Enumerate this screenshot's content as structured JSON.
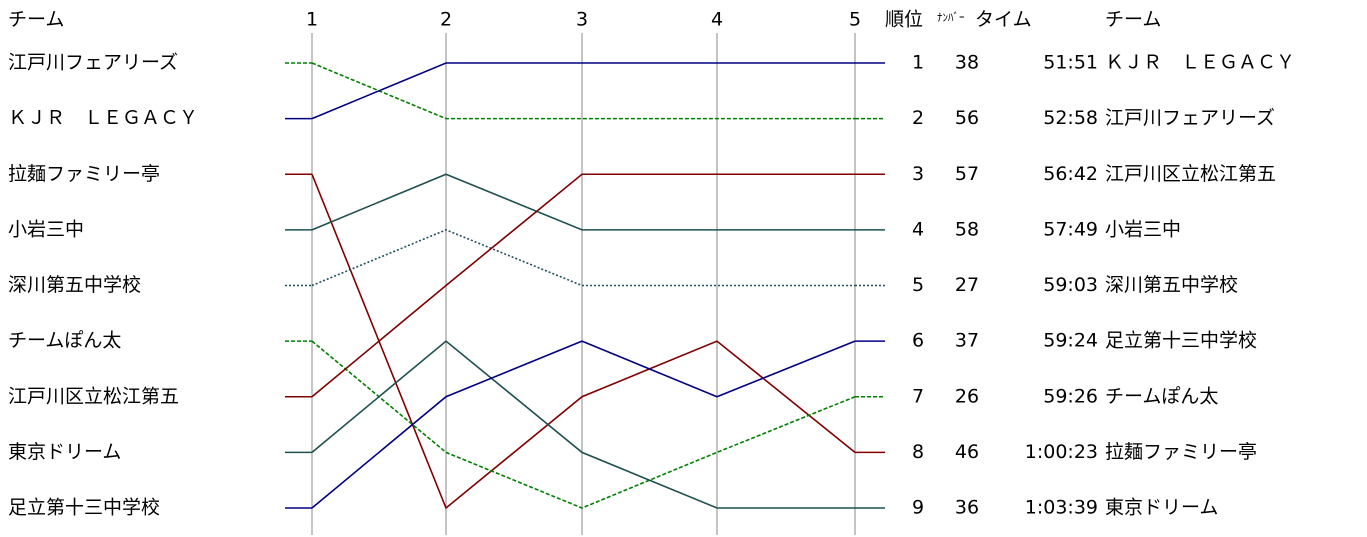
{
  "chart_data": {
    "type": "bump",
    "team_header": "チーム",
    "categories": [
      "1",
      "2",
      "3",
      "4",
      "5"
    ],
    "ylim": [
      9,
      1
    ],
    "series": [
      {
        "name": "江戸川フェアリーズ",
        "color": "#008000",
        "dash": "dashed",
        "values": [
          1,
          2,
          2,
          2,
          2
        ]
      },
      {
        "name": "ＫＪＲ　ＬＥＧＡＣＹ",
        "color": "#000080",
        "dash": "solid",
        "values": [
          2,
          1,
          1,
          1,
          1
        ]
      },
      {
        "name": "拉麺ファミリー亭",
        "color": "#800000",
        "dash": "solid",
        "values": [
          3,
          9,
          7,
          6,
          8
        ]
      },
      {
        "name": "小岩三中",
        "color": "#1f5050",
        "dash": "solid",
        "values": [
          4,
          3,
          4,
          4,
          4
        ]
      },
      {
        "name": "深川第五中学校",
        "color": "#1f5060",
        "dash": "dotted",
        "values": [
          5,
          4,
          5,
          5,
          5
        ]
      },
      {
        "name": "チームぽん太",
        "color": "#008000",
        "dash": "dashed",
        "values": [
          6,
          8,
          9,
          8,
          7
        ]
      },
      {
        "name": "江戸川区立松江第五",
        "color": "#800000",
        "dash": "solid",
        "values": [
          7,
          5,
          3,
          3,
          3
        ]
      },
      {
        "name": "東京ドリーム",
        "color": "#1f5050",
        "dash": "solid",
        "values": [
          8,
          6,
          8,
          9,
          9
        ]
      },
      {
        "name": "足立第十三中学校",
        "color": "#000080",
        "dash": "solid",
        "values": [
          9,
          7,
          6,
          7,
          6
        ]
      }
    ],
    "table": {
      "headers": [
        "順位",
        "ﾅﾝﾊﾞｰ",
        "タイム",
        "チーム"
      ],
      "rows": [
        [
          1,
          "38",
          "51:51",
          "ＫＪＲ　ＬＥＧＡＣＹ"
        ],
        [
          2,
          "56",
          "52:58",
          "江戸川フェアリーズ"
        ],
        [
          3,
          "57",
          "56:42",
          "江戸川区立松江第五"
        ],
        [
          4,
          "58",
          "57:49",
          "小岩三中"
        ],
        [
          5,
          "27",
          "59:03",
          "深川第五中学校"
        ],
        [
          6,
          "37",
          "59:24",
          "足立第十三中学校"
        ],
        [
          7,
          "26",
          "59:26",
          "チームぽん太"
        ],
        [
          8,
          "46",
          "1:00:23",
          "拉麺ファミリー亭"
        ],
        [
          9,
          "36",
          "1:03:39",
          "東京ドリーム"
        ]
      ]
    }
  }
}
